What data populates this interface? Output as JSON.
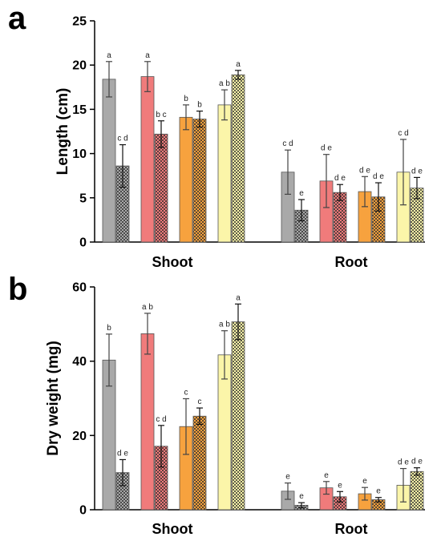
{
  "chart_data": [
    {
      "type": "bar",
      "panel": "a",
      "ylabel": "Length (cm)",
      "ylim": [
        0,
        25
      ],
      "yticks": [
        0,
        5,
        10,
        15,
        20,
        25
      ],
      "categories": [
        "Shoot",
        "Root"
      ],
      "bars": {
        "Shoot": [
          {
            "color": "#a9a9a9",
            "pattern": "solid",
            "value": 18.4,
            "error": 2.0,
            "letters": "a"
          },
          {
            "color": "#a9a9a9",
            "pattern": "checker",
            "value": 8.6,
            "error": 2.4,
            "letters": "c d"
          },
          {
            "color": "#f07b7b",
            "pattern": "solid",
            "value": 18.7,
            "error": 1.7,
            "letters": "a"
          },
          {
            "color": "#f07b7b",
            "pattern": "checker",
            "value": 12.2,
            "error": 1.5,
            "letters": "b c"
          },
          {
            "color": "#f7a23e",
            "pattern": "solid",
            "value": 14.1,
            "error": 1.4,
            "letters": "b"
          },
          {
            "color": "#f7a23e",
            "pattern": "checker",
            "value": 13.9,
            "error": 0.9,
            "letters": "b"
          },
          {
            "color": "#fbf5a9",
            "pattern": "solid",
            "value": 15.5,
            "error": 1.7,
            "letters": "a b"
          },
          {
            "color": "#fbf5a9",
            "pattern": "checker",
            "value": 18.9,
            "error": 0.5,
            "letters": "a"
          }
        ],
        "Root": [
          {
            "color": "#a9a9a9",
            "pattern": "solid",
            "value": 7.9,
            "error": 2.5,
            "letters": "c d"
          },
          {
            "color": "#a9a9a9",
            "pattern": "checker",
            "value": 3.6,
            "error": 1.2,
            "letters": "e"
          },
          {
            "color": "#f07b7b",
            "pattern": "solid",
            "value": 6.9,
            "error": 3.0,
            "letters": "d e"
          },
          {
            "color": "#f07b7b",
            "pattern": "checker",
            "value": 5.6,
            "error": 0.9,
            "letters": "d e"
          },
          {
            "color": "#f7a23e",
            "pattern": "solid",
            "value": 5.7,
            "error": 1.7,
            "letters": "d e"
          },
          {
            "color": "#f7a23e",
            "pattern": "checker",
            "value": 5.1,
            "error": 1.6,
            "letters": "d e"
          },
          {
            "color": "#fbf5a9",
            "pattern": "solid",
            "value": 7.9,
            "error": 3.7,
            "letters": "c d"
          },
          {
            "color": "#fbf5a9",
            "pattern": "checker",
            "value": 6.1,
            "error": 1.2,
            "letters": "d e"
          }
        ]
      }
    },
    {
      "type": "bar",
      "panel": "b",
      "ylabel": "Dry weight (mg)",
      "ylim": [
        0,
        60
      ],
      "yticks": [
        0,
        20,
        40,
        60
      ],
      "categories": [
        "Shoot",
        "Root"
      ],
      "bars": {
        "Shoot": [
          {
            "color": "#a9a9a9",
            "pattern": "solid",
            "value": 40.3,
            "error": 7.0,
            "letters": "b"
          },
          {
            "color": "#a9a9a9",
            "pattern": "checker",
            "value": 10.0,
            "error": 3.5,
            "letters": "d e"
          },
          {
            "color": "#f07b7b",
            "pattern": "solid",
            "value": 47.4,
            "error": 5.5,
            "letters": "a b"
          },
          {
            "color": "#f07b7b",
            "pattern": "checker",
            "value": 17.1,
            "error": 5.6,
            "letters": "c d"
          },
          {
            "color": "#f7a23e",
            "pattern": "solid",
            "value": 22.4,
            "error": 7.5,
            "letters": "c"
          },
          {
            "color": "#f7a23e",
            "pattern": "checker",
            "value": 25.2,
            "error": 2.2,
            "letters": "c"
          },
          {
            "color": "#fbf5a9",
            "pattern": "solid",
            "value": 41.7,
            "error": 6.5,
            "letters": "a b"
          },
          {
            "color": "#fbf5a9",
            "pattern": "checker",
            "value": 50.6,
            "error": 4.8,
            "letters": "a"
          }
        ],
        "Root": [
          {
            "color": "#a9a9a9",
            "pattern": "solid",
            "value": 5.0,
            "error": 2.2,
            "letters": "e"
          },
          {
            "color": "#a9a9a9",
            "pattern": "checker",
            "value": 1.2,
            "error": 0.7,
            "letters": "e"
          },
          {
            "color": "#f07b7b",
            "pattern": "solid",
            "value": 5.9,
            "error": 1.7,
            "letters": "e"
          },
          {
            "color": "#f07b7b",
            "pattern": "checker",
            "value": 3.5,
            "error": 1.4,
            "letters": "e"
          },
          {
            "color": "#f7a23e",
            "pattern": "solid",
            "value": 4.3,
            "error": 1.7,
            "letters": "e"
          },
          {
            "color": "#f7a23e",
            "pattern": "checker",
            "value": 2.7,
            "error": 0.6,
            "letters": "e"
          },
          {
            "color": "#fbf5a9",
            "pattern": "solid",
            "value": 6.6,
            "error": 4.5,
            "letters": "d e"
          },
          {
            "color": "#fbf5a9",
            "pattern": "checker",
            "value": 10.3,
            "error": 1.0,
            "letters": "d e"
          }
        ]
      }
    }
  ]
}
